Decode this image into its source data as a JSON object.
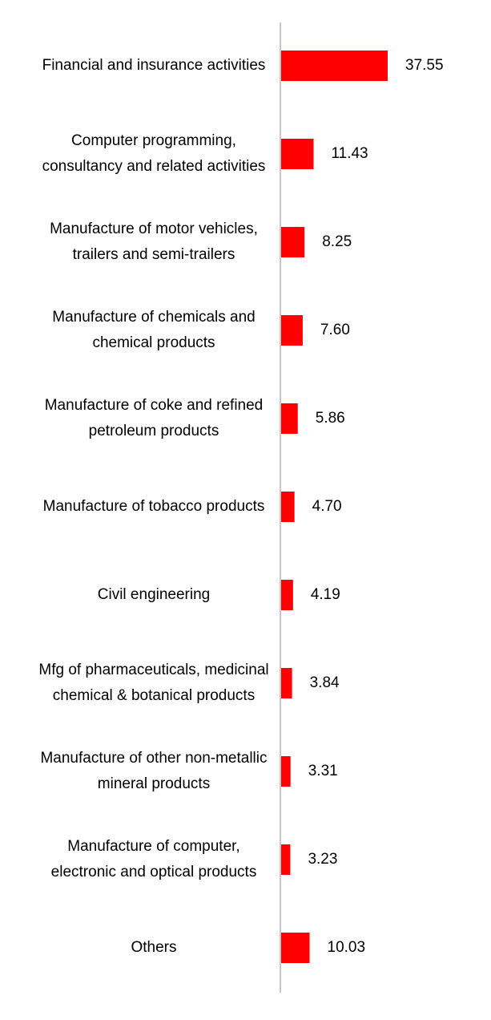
{
  "chart_data": {
    "type": "bar",
    "orientation": "horizontal",
    "color": "#ff0000",
    "categories": [
      "Financial and insurance activities",
      "Computer programming, consultancy and related activities",
      "Manufacture of motor vehicles, trailers and semi-trailers",
      "Manufacture of chemicals and chemical products",
      "Manufacture of coke and refined petroleum products",
      "Manufacture of tobacco products",
      "Civil engineering",
      "Mfg of pharmaceuticals, medicinal chemical & botanical products",
      "Manufacture of other non-metallic mineral products",
      "Manufacture of computer, electronic and optical products",
      "Others"
    ],
    "values": [
      37.55,
      11.43,
      8.25,
      7.6,
      5.86,
      4.7,
      4.19,
      3.84,
      3.31,
      3.23,
      10.03
    ],
    "value_labels": [
      "37.55",
      "11.43",
      "8.25",
      "7.60",
      "5.86",
      "4.70",
      "4.19",
      "3.84",
      "3.31",
      "3.23",
      "10.03"
    ]
  }
}
